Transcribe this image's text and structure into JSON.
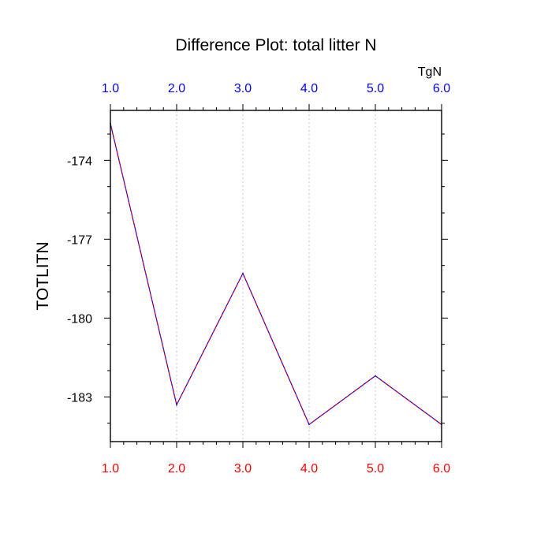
{
  "chart_data": {
    "type": "line",
    "title": "Difference Plot: total litter N",
    "ylabel": "TOTLITN",
    "top_axis_label": "TgN",
    "xlabel": "",
    "x": [
      1,
      2,
      3,
      4,
      5,
      6
    ],
    "bottom_tick_labels": [
      "1.0",
      "2.0",
      "3.0",
      "4.0",
      "5.0",
      "6.0"
    ],
    "top_tick_labels": [
      "1.0",
      "2.0",
      "3.0",
      "4.0",
      "5.0",
      "6.0"
    ],
    "ytick_values": [
      -174,
      -177,
      -180,
      -183
    ],
    "ytick_labels": [
      "-174",
      "-177",
      "-180",
      "-183"
    ],
    "xlim": [
      1,
      6
    ],
    "ylim": [
      -184.7,
      -172.1
    ],
    "series": [
      {
        "values": [
          -172.6,
          -183.3,
          -178.3,
          -184.05,
          -182.2,
          -184.05
        ]
      }
    ],
    "vertical_gridlines": true,
    "colors": {
      "bottom_axis_labels": "#ff0000",
      "top_axis_labels": "#0000ff",
      "line_a": "#0000ff",
      "line_b": "#ff0000",
      "gridline": "#c8c8c8"
    }
  }
}
